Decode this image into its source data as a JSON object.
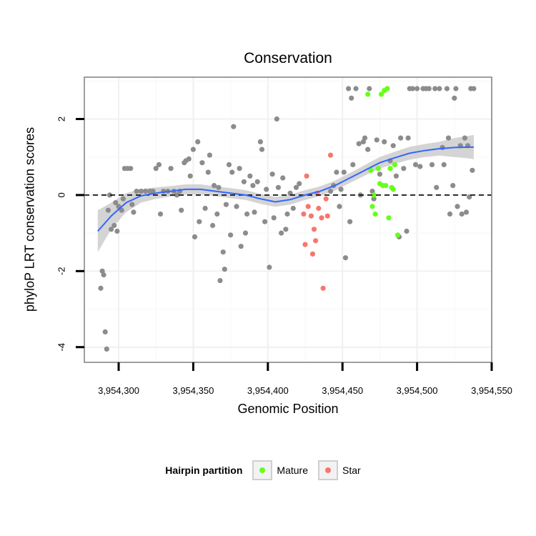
{
  "chart_data": {
    "type": "scatter",
    "title": "Conservation",
    "xlabel": "Genomic Position",
    "ylabel": "phyloP LRT conservation scores",
    "xlim": [
      3954277,
      3954550
    ],
    "ylim": [
      -4.4,
      3.1
    ],
    "x_ticks": [
      3954300,
      3954350,
      3954400,
      3954450,
      3954500,
      3954550
    ],
    "x_tick_labels": [
      "3,954,300",
      "3,954,350",
      "3,954,400",
      "3,954,450",
      "3,954,500",
      "3,954,550"
    ],
    "y_ticks": [
      -4,
      -2,
      0,
      2
    ],
    "y_tick_labels": [
      "-4",
      "-2",
      "0",
      "2"
    ],
    "reference_line": {
      "y": 0,
      "style": "dashed"
    },
    "grid": true,
    "legend": {
      "title": "Hairpin partition",
      "placement": "bottom",
      "entries": [
        {
          "label": "Mature",
          "color": "#66ff1a"
        },
        {
          "label": "Star",
          "color": "#f8766d"
        }
      ]
    },
    "colors": {
      "other": "#8c8c8c",
      "smooth": "#3366ff",
      "band": "#cccccc"
    },
    "series": [
      {
        "name": "",
        "points": [
          [
            3954288,
            -2.45
          ],
          [
            3954289,
            -2.0
          ],
          [
            3954290,
            -2.1
          ],
          [
            3954291,
            -3.6
          ],
          [
            3954292,
            -4.05
          ],
          [
            3954293,
            -0.4
          ],
          [
            3954294,
            -0.0
          ],
          [
            3954295,
            -0.9
          ],
          [
            3954297,
            -0.8
          ],
          [
            3954298,
            -0.2
          ],
          [
            3954299,
            -0.95
          ],
          [
            3954300,
            -0.3
          ],
          [
            3954302,
            -0.4
          ],
          [
            3954303,
            -0.1
          ],
          [
            3954304,
            0.7
          ],
          [
            3954306,
            0.7
          ],
          [
            3954308,
            0.7
          ],
          [
            3954309,
            -0.25
          ],
          [
            3954310,
            -0.45
          ],
          [
            3954312,
            0.1
          ],
          [
            3954315,
            0.1
          ],
          [
            3954318,
            0.1
          ],
          [
            3954321,
            0.1
          ],
          [
            3954323,
            0.1
          ],
          [
            3954325,
            0.7
          ],
          [
            3954327,
            0.8
          ],
          [
            3954328,
            -0.5
          ],
          [
            3954330,
            0.1
          ],
          [
            3954333,
            0.1
          ],
          [
            3954335,
            0.7
          ],
          [
            3954337,
            0.1
          ],
          [
            3954339,
            0.0
          ],
          [
            3954341,
            0.1
          ],
          [
            3954342,
            -0.4
          ],
          [
            3954344,
            0.85
          ],
          [
            3954345,
            0.9
          ],
          [
            3954347,
            0.95
          ],
          [
            3954348,
            0.5
          ],
          [
            3954350,
            1.2
          ],
          [
            3954351,
            -1.1
          ],
          [
            3954353,
            1.4
          ],
          [
            3954354,
            -0.7
          ],
          [
            3954356,
            0.85
          ],
          [
            3954358,
            -0.35
          ],
          [
            3954360,
            0.6
          ],
          [
            3954361,
            1.05
          ],
          [
            3954363,
            -0.8
          ],
          [
            3954364,
            0.25
          ],
          [
            3954366,
            -0.5
          ],
          [
            3954367,
            0.2
          ],
          [
            3954368,
            -2.25
          ],
          [
            3954370,
            -1.5
          ],
          [
            3954371,
            -1.95
          ],
          [
            3954372,
            -0.25
          ],
          [
            3954374,
            0.8
          ],
          [
            3954375,
            -1.05
          ],
          [
            3954376,
            0.6
          ],
          [
            3954377,
            1.8
          ],
          [
            3954379,
            -0.3
          ],
          [
            3954381,
            0.7
          ],
          [
            3954382,
            -1.35
          ],
          [
            3954384,
            0.35
          ],
          [
            3954385,
            -1.0
          ],
          [
            3954386,
            -0.5
          ],
          [
            3954388,
            0.5
          ],
          [
            3954390,
            0.25
          ],
          [
            3954391,
            -0.45
          ],
          [
            3954393,
            0.35
          ],
          [
            3954395,
            1.4
          ],
          [
            3954396,
            1.2
          ],
          [
            3954398,
            -0.7
          ],
          [
            3954399,
            0.15
          ],
          [
            3954401,
            -1.9
          ],
          [
            3954403,
            0.55
          ],
          [
            3954404,
            -0.6
          ],
          [
            3954406,
            2.0
          ],
          [
            3954407,
            0.2
          ],
          [
            3954409,
            -1.0
          ],
          [
            3954410,
            0.45
          ],
          [
            3954412,
            -0.9
          ],
          [
            3954413,
            -0.5
          ],
          [
            3954415,
            0.05
          ],
          [
            3954417,
            -0.35
          ],
          [
            3954419,
            0.2
          ],
          [
            3954421,
            0.3
          ],
          [
            3954442,
            0.1
          ],
          [
            3954444,
            0.25
          ],
          [
            3954446,
            0.6
          ],
          [
            3954448,
            -0.3
          ],
          [
            3954449,
            0.15
          ],
          [
            3954451,
            0.6
          ],
          [
            3954452,
            -1.65
          ],
          [
            3954454,
            2.8
          ],
          [
            3954455,
            -0.7
          ],
          [
            3954456,
            2.55
          ],
          [
            3954457,
            0.8
          ],
          [
            3954459,
            2.8
          ],
          [
            3954461,
            1.35
          ],
          [
            3954462,
            0.0
          ],
          [
            3954464,
            1.4
          ],
          [
            3954465,
            1.5
          ],
          [
            3954467,
            1.2
          ],
          [
            3954468,
            2.8
          ],
          [
            3954470,
            0.1
          ],
          [
            3954471,
            -0.1
          ],
          [
            3954473,
            1.45
          ],
          [
            3954475,
            0.55
          ],
          [
            3954478,
            1.4
          ],
          [
            3954480,
            2.8
          ],
          [
            3954482,
            0.9
          ],
          [
            3954484,
            1.3
          ],
          [
            3954486,
            0.5
          ],
          [
            3954488,
            -1.1
          ],
          [
            3954489,
            1.5
          ],
          [
            3954491,
            0.7
          ],
          [
            3954493,
            -0.95
          ],
          [
            3954494,
            1.5
          ],
          [
            3954495,
            2.8
          ],
          [
            3954497,
            2.8
          ],
          [
            3954499,
            0.8
          ],
          [
            3954500,
            2.8
          ],
          [
            3954502,
            0.75
          ],
          [
            3954504,
            2.8
          ],
          [
            3954506,
            2.8
          ],
          [
            3954508,
            2.8
          ],
          [
            3954510,
            0.8
          ],
          [
            3954512,
            2.8
          ],
          [
            3954513,
            0.2
          ],
          [
            3954515,
            2.8
          ],
          [
            3954517,
            1.25
          ],
          [
            3954518,
            0.8
          ],
          [
            3954520,
            2.8
          ],
          [
            3954521,
            1.5
          ],
          [
            3954522,
            -0.5
          ],
          [
            3954524,
            0.25
          ],
          [
            3954525,
            2.55
          ],
          [
            3954526,
            2.8
          ],
          [
            3954527,
            -0.3
          ],
          [
            3954529,
            1.3
          ],
          [
            3954530,
            -0.5
          ],
          [
            3954532,
            1.5
          ],
          [
            3954533,
            -0.45
          ],
          [
            3954534,
            1.3
          ],
          [
            3954535,
            -0.05
          ],
          [
            3954536,
            2.8
          ],
          [
            3954537,
            0.65
          ],
          [
            3954538,
            2.8
          ]
        ]
      },
      {
        "name": "Mature",
        "points": [
          [
            3954467,
            2.65
          ],
          [
            3954469,
            0.65
          ],
          [
            3954470,
            -0.3
          ],
          [
            3954471,
            0.0
          ],
          [
            3954472,
            -0.5
          ],
          [
            3954474,
            0.7
          ],
          [
            3954475,
            0.3
          ],
          [
            3954476,
            2.65
          ],
          [
            3954477,
            0.25
          ],
          [
            3954478,
            2.75
          ],
          [
            3954479,
            0.25
          ],
          [
            3954480,
            2.8
          ],
          [
            3954481,
            -0.6
          ],
          [
            3954482,
            0.7
          ],
          [
            3954483,
            0.2
          ],
          [
            3954484,
            0.15
          ],
          [
            3954485,
            0.8
          ],
          [
            3954487,
            -1.05
          ]
        ]
      },
      {
        "name": "Star",
        "points": [
          [
            3954424,
            -0.5
          ],
          [
            3954425,
            -1.3
          ],
          [
            3954426,
            0.5
          ],
          [
            3954427,
            -0.3
          ],
          [
            3954429,
            -0.55
          ],
          [
            3954430,
            -1.55
          ],
          [
            3954431,
            -0.9
          ],
          [
            3954432,
            -1.2
          ],
          [
            3954433,
            0.05
          ],
          [
            3954434,
            -0.35
          ],
          [
            3954436,
            -0.6
          ],
          [
            3954437,
            -2.45
          ],
          [
            3954439,
            -0.1
          ],
          [
            3954440,
            -0.55
          ],
          [
            3954442,
            1.05
          ]
        ]
      }
    ],
    "smooth_curve": [
      [
        3954286,
        -0.95
      ],
      [
        3954295,
        -0.55
      ],
      [
        3954305,
        -0.2
      ],
      [
        3954315,
        -0.02
      ],
      [
        3954325,
        0.05
      ],
      [
        3954335,
        0.1
      ],
      [
        3954345,
        0.15
      ],
      [
        3954355,
        0.15
      ],
      [
        3954365,
        0.1
      ],
      [
        3954375,
        0.05
      ],
      [
        3954385,
        0.0
      ],
      [
        3954395,
        -0.1
      ],
      [
        3954405,
        -0.18
      ],
      [
        3954415,
        -0.12
      ],
      [
        3954425,
        0.0
      ],
      [
        3954435,
        0.1
      ],
      [
        3954445,
        0.25
      ],
      [
        3954455,
        0.45
      ],
      [
        3954465,
        0.65
      ],
      [
        3954475,
        0.85
      ],
      [
        3954485,
        0.98
      ],
      [
        3954495,
        1.1
      ],
      [
        3954505,
        1.17
      ],
      [
        3954515,
        1.22
      ],
      [
        3954525,
        1.25
      ],
      [
        3954535,
        1.26
      ],
      [
        3954538,
        1.26
      ]
    ],
    "band_halfwidth": [
      0.55,
      0.35,
      0.25,
      0.18,
      0.15,
      0.14,
      0.13,
      0.13,
      0.13,
      0.13,
      0.13,
      0.13,
      0.13,
      0.13,
      0.13,
      0.13,
      0.13,
      0.13,
      0.14,
      0.15,
      0.16,
      0.17,
      0.17,
      0.18,
      0.25,
      0.3,
      0.32
    ]
  }
}
